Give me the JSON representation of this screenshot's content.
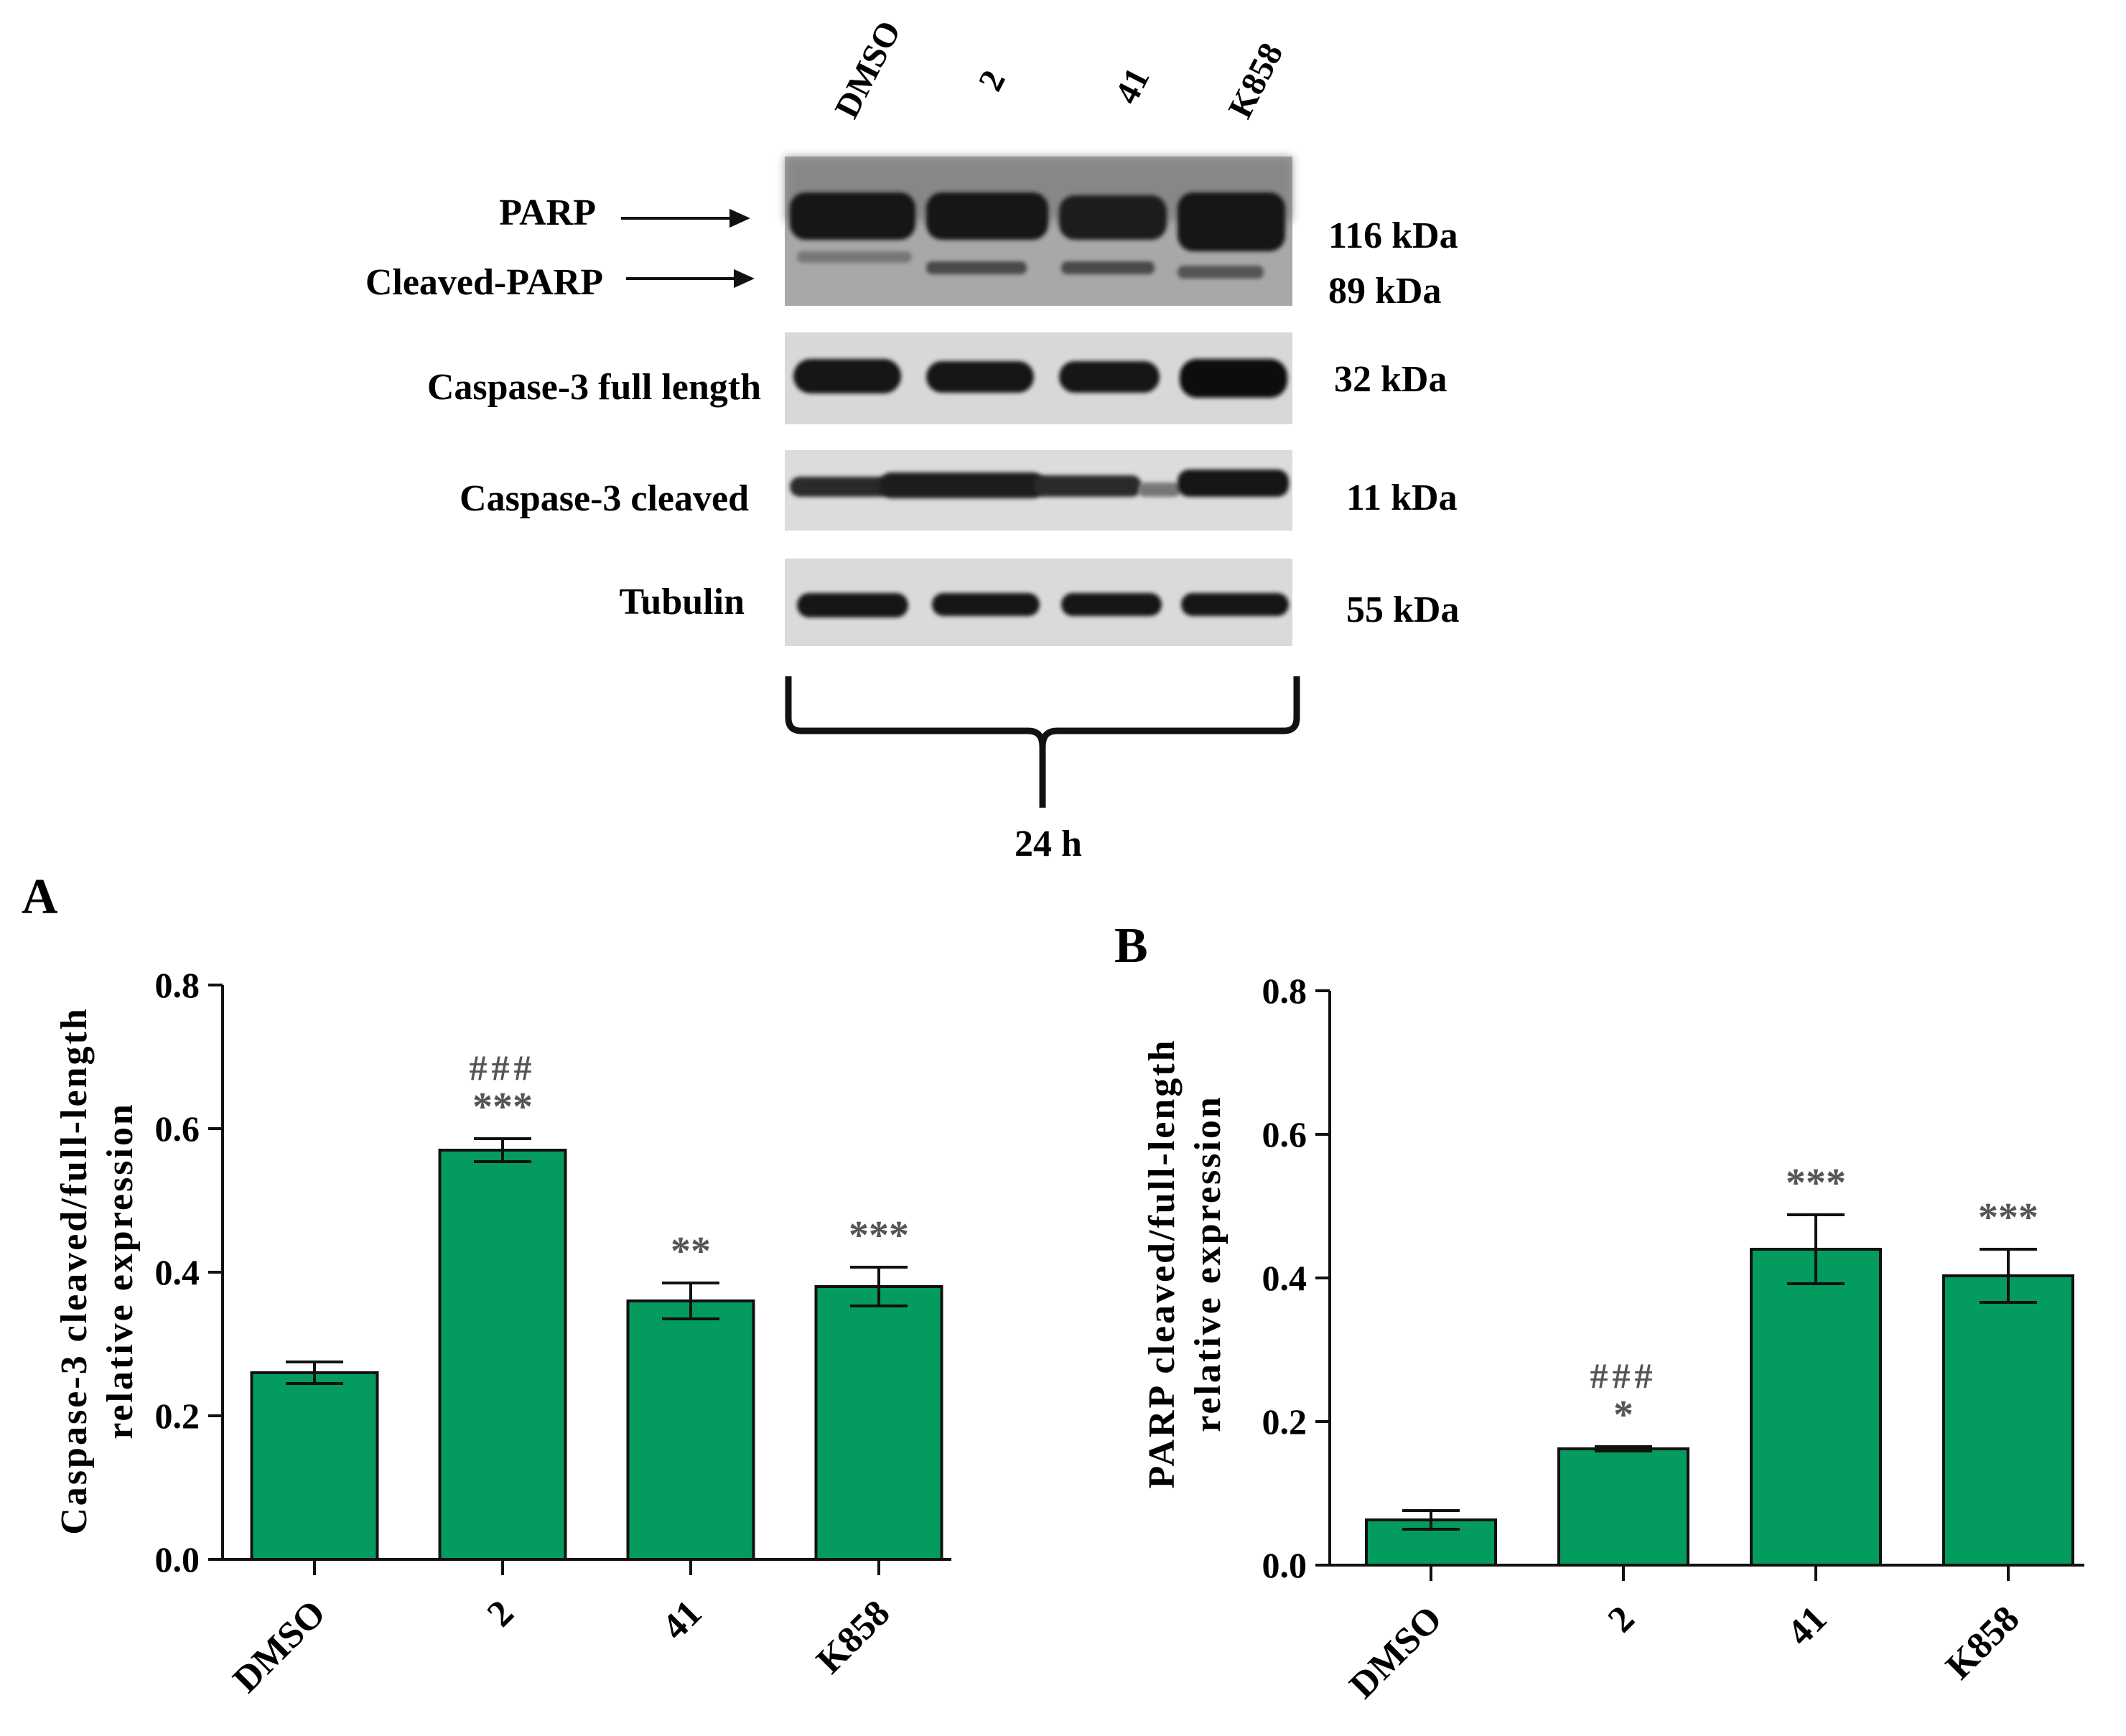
{
  "blot": {
    "lanes": [
      "DMSO",
      "2",
      "41",
      "K858"
    ],
    "rows": [
      {
        "label": "PARP",
        "arrow": true,
        "mw": "116 kDa"
      },
      {
        "label": "Cleaved-PARP",
        "arrow": true,
        "mw": "89 kDa"
      },
      {
        "label": "Caspase-3 full length",
        "arrow": false,
        "mw": "32 kDa"
      },
      {
        "label": "Caspase-3 cleaved",
        "arrow": false,
        "mw": "11 kDa"
      },
      {
        "label": "Tubulin",
        "arrow": false,
        "mw": "55 kDa"
      }
    ],
    "timepoint": "24 h"
  },
  "colors": {
    "bar": "#039b5e",
    "annotation": "#555555",
    "axis": "#111111"
  },
  "chart_data": [
    {
      "type": "bar",
      "panel": "A",
      "title": "",
      "xlabel": "",
      "ylabel": [
        "Caspase-3 cleaved/full-length",
        "relative expression"
      ],
      "categories": [
        "DMSO",
        "2",
        "41",
        "K858"
      ],
      "values": [
        0.26,
        0.57,
        0.36,
        0.38
      ],
      "errors": [
        0.015,
        0.016,
        0.025,
        0.027
      ],
      "significance": [
        [],
        [
          "###",
          "***"
        ],
        [
          "**"
        ],
        [
          "***"
        ]
      ],
      "ylim": [
        0,
        0.8
      ],
      "yticks": [
        "0.0",
        "0.2",
        "0.4",
        "0.6",
        "0.8"
      ],
      "grid": false
    },
    {
      "type": "bar",
      "panel": "B",
      "title": "",
      "xlabel": "",
      "ylabel": [
        "PARP cleaved/full-length",
        "relative expression"
      ],
      "categories": [
        "DMSO",
        "2",
        "41",
        "K858"
      ],
      "values": [
        0.063,
        0.162,
        0.44,
        0.403
      ],
      "errors": [
        0.013,
        0.003,
        0.048,
        0.037
      ],
      "significance": [
        [],
        [
          "###",
          "*"
        ],
        [
          "***"
        ],
        [
          "***"
        ]
      ],
      "ylim": [
        0,
        0.8
      ],
      "yticks": [
        "0.0",
        "0.2",
        "0.4",
        "0.6",
        "0.8"
      ],
      "grid": false
    }
  ]
}
